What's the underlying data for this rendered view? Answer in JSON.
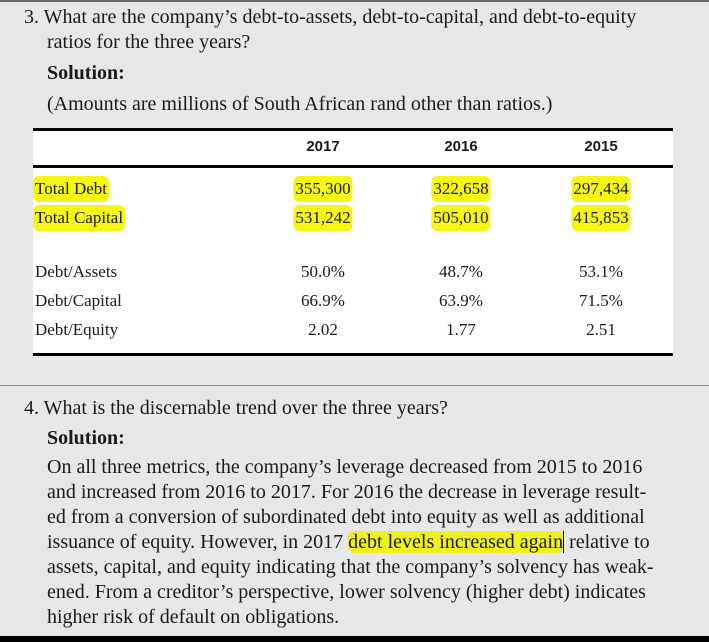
{
  "q3": {
    "question_lines": [
      "3. What are the company’s debt-to-assets, debt-to-capital, and debt-to-equity",
      "ratios for the three years?"
    ],
    "solution_label": "Solution:",
    "note": "(Amounts are millions of South African rand other than ratios.)"
  },
  "table": {
    "columns": [
      "2017",
      "2016",
      "2015"
    ],
    "highlighted_rows": [
      {
        "label": "Total Debt",
        "values": [
          "355,300",
          "322,658",
          "297,434"
        ]
      },
      {
        "label": "Total Capital",
        "values": [
          "531,242",
          "505,010",
          "415,853"
        ]
      }
    ],
    "ratio_rows": [
      {
        "label": "Debt/Assets",
        "values": [
          "50.0%",
          "48.7%",
          "53.1%"
        ]
      },
      {
        "label": "Debt/Capital",
        "values": [
          "66.9%",
          "63.9%",
          "71.5%"
        ]
      },
      {
        "label": "Debt/Equity",
        "values": [
          "2.02",
          "1.77",
          "2.51"
        ]
      }
    ]
  },
  "q4": {
    "question": "4. What is the discernable trend over the three years?",
    "solution_label": "Solution:",
    "lines": [
      "On all three metrics, the company’s leverage decreased from 2015 to 2016",
      "and increased from 2016 to 2017. For 2016 the decrease in leverage result-",
      "ed from a conversion of subordinated debt into equity as well as additional",
      "assets, capital, and equity indicating that the company’s solvency has weak-",
      "ened. From a creditor’s perspective, lower solvency (higher debt) indicates",
      "higher risk of default on obligations."
    ],
    "line4_before": "issuance of equity. However, in 2017 ",
    "line4_highlight": "debt levels increased again",
    "line4_after": " relative to"
  },
  "colors": {
    "highlight": "#f5f516",
    "background": "#e5e7e9"
  }
}
